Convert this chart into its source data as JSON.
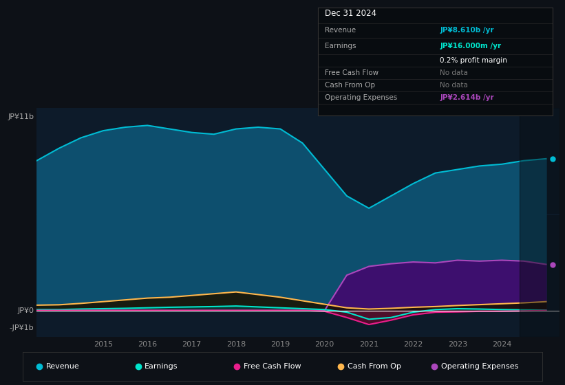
{
  "bg_color": "#0d1117",
  "plot_bg_color": "#0d1b2a",
  "title": "Dec 31 2024",
  "grid_color": "#1e3a5f",
  "ylabel_top": "JP¥11b",
  "ylabel_zero": "JP¥0",
  "ylabel_neg": "-JP¥1b",
  "years": [
    2013.5,
    2014,
    2014.5,
    2015,
    2015.5,
    2016,
    2016.5,
    2017,
    2017.5,
    2018,
    2018.5,
    2019,
    2019.5,
    2020,
    2020.5,
    2021,
    2021.5,
    2022,
    2022.5,
    2023,
    2023.5,
    2024,
    2024.5,
    2025.0
  ],
  "revenue": [
    8.5,
    9.2,
    9.8,
    10.2,
    10.4,
    10.5,
    10.3,
    10.1,
    10.0,
    10.3,
    10.4,
    10.3,
    9.5,
    8.0,
    6.5,
    5.8,
    6.5,
    7.2,
    7.8,
    8.0,
    8.2,
    8.3,
    8.5,
    8.61
  ],
  "earnings": [
    0.05,
    0.05,
    0.08,
    0.1,
    0.12,
    0.15,
    0.18,
    0.2,
    0.22,
    0.25,
    0.2,
    0.15,
    0.1,
    0.05,
    -0.1,
    -0.5,
    -0.4,
    -0.1,
    0.05,
    0.1,
    0.08,
    0.05,
    0.03,
    0.016
  ],
  "free_cash_flow": [
    0.0,
    0.0,
    0.0,
    0.0,
    0.0,
    0.0,
    0.0,
    0.0,
    0.0,
    0.0,
    0.0,
    0.0,
    0.0,
    -0.05,
    -0.4,
    -0.8,
    -0.55,
    -0.25,
    -0.1,
    -0.08,
    -0.05,
    -0.05,
    -0.03,
    0.0
  ],
  "cash_from_op": [
    0.3,
    0.32,
    0.4,
    0.5,
    0.6,
    0.7,
    0.75,
    0.85,
    0.95,
    1.05,
    0.9,
    0.75,
    0.55,
    0.35,
    0.15,
    0.08,
    0.12,
    0.18,
    0.22,
    0.28,
    0.33,
    0.38,
    0.43,
    0.5
  ],
  "operating_expenses": [
    0.0,
    0.0,
    0.0,
    0.0,
    0.0,
    0.0,
    0.0,
    0.0,
    0.0,
    0.0,
    0.0,
    0.0,
    0.0,
    0.0,
    2.0,
    2.5,
    2.65,
    2.75,
    2.7,
    2.85,
    2.8,
    2.85,
    2.8,
    2.614
  ],
  "revenue_color": "#00bcd4",
  "revenue_fill": "#0d4f6e",
  "earnings_color": "#00e5cc",
  "earnings_fill": "#0d3d3a",
  "free_cash_flow_color": "#e91e8c",
  "free_cash_flow_fill": "#5a0a2a",
  "cash_from_op_color": "#ffb74d",
  "cash_from_op_fill": "#1a1200",
  "op_exp_color": "#ab47bc",
  "op_exp_fill": "#3d0f6e",
  "tooltip_bg": "#080c10",
  "tooltip_border": "#333333",
  "xmin": 2013.5,
  "xmax": 2025.3,
  "ymin": -1.5,
  "ymax": 11.5,
  "xticks": [
    2015,
    2016,
    2017,
    2018,
    2019,
    2020,
    2021,
    2022,
    2023,
    2024
  ],
  "legend_labels": [
    "Revenue",
    "Earnings",
    "Free Cash Flow",
    "Cash From Op",
    "Operating Expenses"
  ],
  "legend_colors": [
    "#00bcd4",
    "#00e5cc",
    "#e91e8c",
    "#ffb74d",
    "#ab47bc"
  ]
}
